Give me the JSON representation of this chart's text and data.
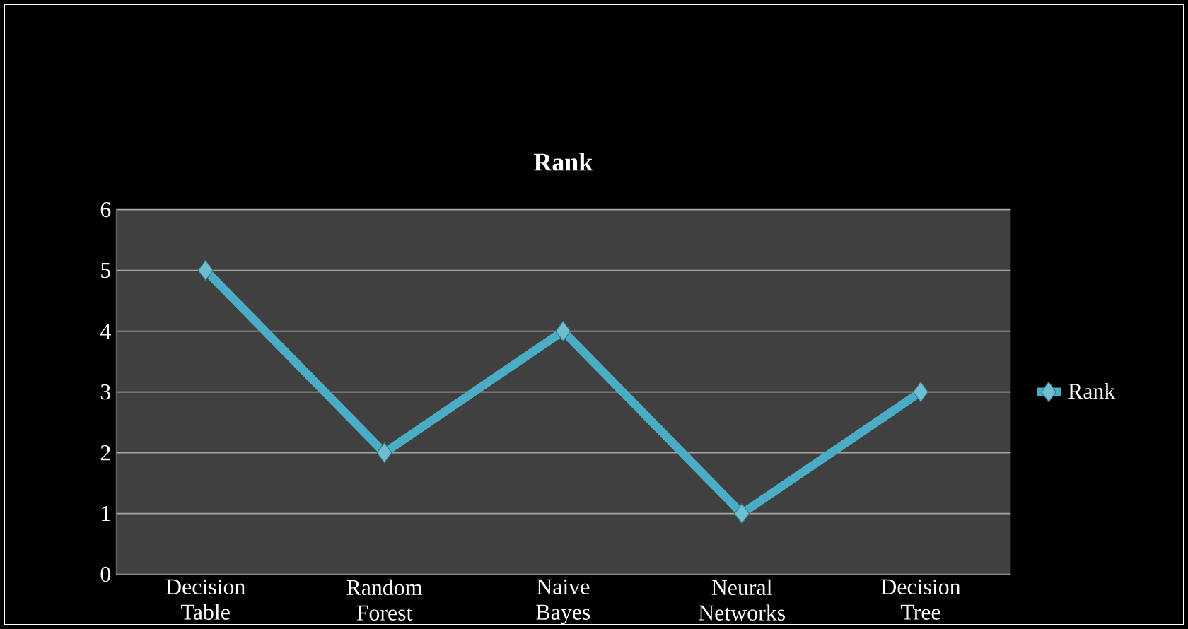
{
  "chart_data": {
    "type": "line",
    "title": "Rank",
    "categories": [
      "Decision Table",
      "Random Forest",
      "Naive Bayes",
      "Neural Networks",
      "Decision Tree"
    ],
    "series": [
      {
        "name": "Rank",
        "color": "#4bacc6",
        "values": [
          5,
          2,
          4,
          1,
          3
        ]
      }
    ],
    "ylim": [
      0,
      6
    ],
    "yticks": [
      0,
      1,
      2,
      3,
      4,
      5,
      6
    ],
    "grid": "y",
    "legend": "right",
    "marker": "diamond",
    "line_style": "solid"
  }
}
